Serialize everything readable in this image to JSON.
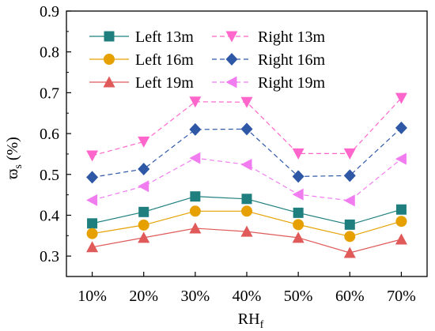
{
  "chart_data": {
    "type": "line",
    "xlabel": "RH",
    "xlabel_sub": "f",
    "ylabel": "ϖ",
    "ylabel_sub": "s",
    "ylabel_unit": "(%)",
    "categories": [
      "10%",
      "20%",
      "30%",
      "40%",
      "50%",
      "60%",
      "70%"
    ],
    "ylim": [
      0.25,
      0.9
    ],
    "yticks": [
      0.3,
      0.4,
      0.5,
      0.6,
      0.7,
      0.8,
      0.9
    ],
    "ytick_labels": [
      "0.3",
      "0.4",
      "0.5",
      "0.6",
      "0.7",
      "0.8",
      "0.9"
    ],
    "grid": false,
    "legend_position": "top-left",
    "series": [
      {
        "name": "Left 13m",
        "color": "#1f7f7f",
        "marker": "square",
        "dash": "solid",
        "values": [
          0.38,
          0.408,
          0.446,
          0.44,
          0.406,
          0.377,
          0.414
        ]
      },
      {
        "name": "Left 16m",
        "color": "#e6a100",
        "marker": "circle",
        "dash": "solid",
        "values": [
          0.355,
          0.376,
          0.41,
          0.41,
          0.377,
          0.348,
          0.385
        ]
      },
      {
        "name": "Left 19m",
        "color": "#e05a5a",
        "marker": "triangle-up",
        "dash": "solid",
        "values": [
          0.322,
          0.345,
          0.368,
          0.36,
          0.345,
          0.308,
          0.341
        ]
      },
      {
        "name": "Right 13m",
        "color": "#ff66cc",
        "marker": "triangle-down",
        "dash": "dashed",
        "values": [
          0.546,
          0.58,
          0.678,
          0.677,
          0.551,
          0.551,
          0.687
        ]
      },
      {
        "name": "Right 16m",
        "color": "#2e58a6",
        "marker": "diamond",
        "dash": "dashed",
        "values": [
          0.493,
          0.513,
          0.61,
          0.611,
          0.495,
          0.497,
          0.614
        ]
      },
      {
        "name": "Right 19m",
        "color": "#f07cf0",
        "marker": "triangle-left",
        "dash": "dashed",
        "values": [
          0.437,
          0.471,
          0.54,
          0.524,
          0.451,
          0.436,
          0.538
        ]
      }
    ]
  }
}
